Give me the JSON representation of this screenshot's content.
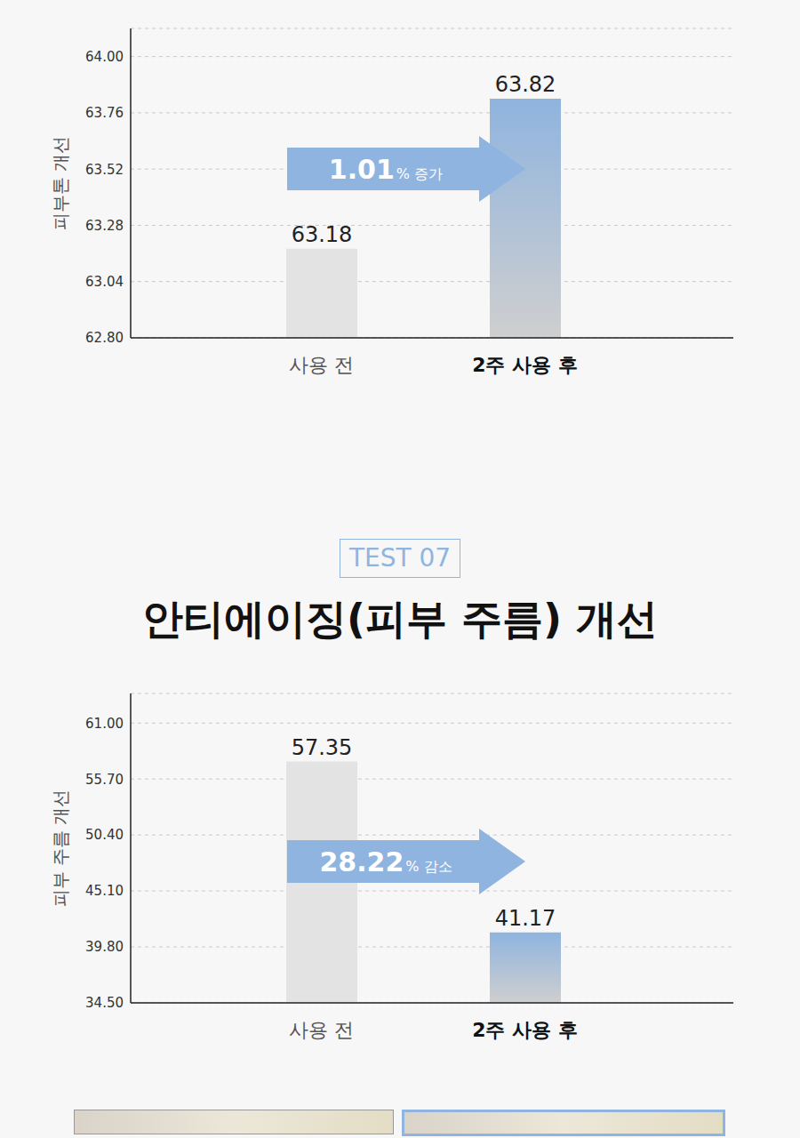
{
  "chart_data": [
    {
      "type": "bar",
      "categories": [
        "사용 전",
        "2주 사용 후"
      ],
      "values": [
        63.18,
        63.82
      ],
      "colors": [
        "#e3e3e3",
        "#8fb4df"
      ],
      "ylabel": "피부톤 개선",
      "ylim": [
        62.8,
        64.12
      ],
      "yticks": [
        {
          "value": 62.8,
          "label": "62.80"
        },
        63.04,
        63.28,
        63.52,
        63.76,
        {
          "value": 64,
          "label": "64.00"
        }
      ],
      "grid": true,
      "data_labels": true,
      "annotation": "1.01% 증가"
    },
    {
      "type": "bar",
      "badge": "TEST 07",
      "title": "안티에이징(피부 주름) 개선",
      "categories": [
        "사용 전",
        "2주 사용 후"
      ],
      "values": [
        57.35,
        41.17
      ],
      "colors": [
        "#e3e3e3",
        "#8fb4df"
      ],
      "ylabel": "피부 주름 개선",
      "ylim": [
        34.5,
        63.8
      ],
      "yticks": [
        {
          "value": 34.5,
          "label": "34.50"
        },
        {
          "value": 39.8,
          "label": "39.80"
        },
        {
          "value": 45.1,
          "label": "45.10"
        },
        {
          "value": 50.4,
          "label": "50.40"
        },
        {
          "value": 55.7,
          "label": "55.70"
        },
        {
          "value": 61,
          "label": "61.00"
        }
      ],
      "grid": true,
      "data_labels": true,
      "annotation": "28.22% 감소"
    }
  ]
}
